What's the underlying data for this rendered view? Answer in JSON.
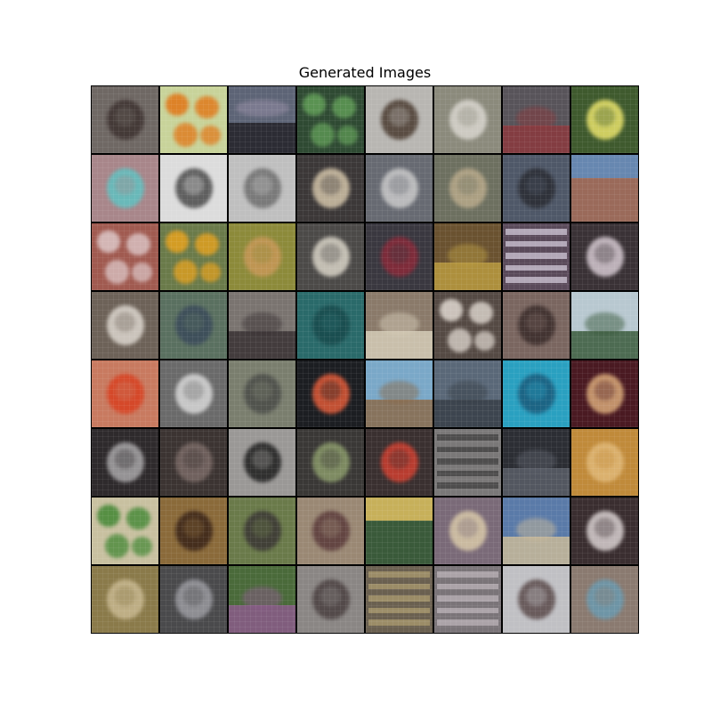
{
  "title": "Generated Images",
  "grid": {
    "rows": 8,
    "cols": 8,
    "tiles": [
      {
        "name": "tile-spider",
        "bg": "#6f6864",
        "accent": "#3d3230",
        "hint": "center"
      },
      {
        "name": "tile-oranges",
        "bg": "#c8d39a",
        "accent": "#e07a1c",
        "hint": "spots"
      },
      {
        "name": "tile-sunset-lake",
        "bg": "#5d6476",
        "accent": "#2c2c34",
        "hint": "horizon"
      },
      {
        "name": "tile-green-leaves",
        "bg": "#2f4a33",
        "accent": "#5f9a56",
        "hint": "spots"
      },
      {
        "name": "tile-food-plate",
        "bg": "#b8b6b2",
        "accent": "#4a3b30",
        "hint": "center"
      },
      {
        "name": "tile-ox-cart",
        "bg": "#8b8a7c",
        "accent": "#d9d6cf",
        "hint": "center"
      },
      {
        "name": "tile-rug",
        "bg": "#58545a",
        "accent": "#8b3a3e",
        "hint": "bottom"
      },
      {
        "name": "tile-yellow-butterfly",
        "bg": "#3f5a2e",
        "accent": "#e8e26a",
        "hint": "center"
      },
      {
        "name": "tile-child-face",
        "bg": "#a8868a",
        "accent": "#5fc2c2",
        "hint": "center"
      },
      {
        "name": "tile-gray-device",
        "bg": "#dcdcdc",
        "accent": "#4a4a4a",
        "hint": "center"
      },
      {
        "name": "tile-gray-animal",
        "bg": "#bfbfbf",
        "accent": "#6e6e6e",
        "hint": "center"
      },
      {
        "name": "tile-sandwich",
        "bg": "#3c3838",
        "accent": "#d2c3a8",
        "hint": "center"
      },
      {
        "name": "tile-bird-branch",
        "bg": "#676a72",
        "accent": "#c9c9c9",
        "hint": "center"
      },
      {
        "name": "tile-goat-head",
        "bg": "#6d7060",
        "accent": "#b8a98a",
        "hint": "center"
      },
      {
        "name": "tile-dog-sky",
        "bg": "#4f5868",
        "accent": "#2a2c33",
        "hint": "center"
      },
      {
        "name": "tile-cliff",
        "bg": "#9a6a5a",
        "accent": "#5e8cc0",
        "hint": "top"
      },
      {
        "name": "tile-flowers-red",
        "bg": "#a05a50",
        "accent": "#d9c0c0",
        "hint": "spots"
      },
      {
        "name": "tile-peppers",
        "bg": "#6a7a4a",
        "accent": "#e0a020",
        "hint": "spots"
      },
      {
        "name": "tile-poodle",
        "bg": "#8c8a3a",
        "accent": "#c89858",
        "hint": "center"
      },
      {
        "name": "tile-white-dog",
        "bg": "#4c4a48",
        "accent": "#d8d3c6",
        "hint": "center"
      },
      {
        "name": "tile-red-jacket",
        "bg": "#3a3840",
        "accent": "#8a2a3a",
        "hint": "center"
      },
      {
        "name": "tile-food-tray",
        "bg": "#6a5230",
        "accent": "#b89a40",
        "hint": "bottom"
      },
      {
        "name": "tile-bottles-shelf",
        "bg": "#5a4a5a",
        "accent": "#d8d0e0",
        "hint": "stripes"
      },
      {
        "name": "tile-fluffy-pet",
        "bg": "#3a3236",
        "accent": "#d4c8d0",
        "hint": "center"
      },
      {
        "name": "tile-ram",
        "bg": "#6d6258",
        "accent": "#dcd6ce",
        "hint": "center"
      },
      {
        "name": "tile-tree-figure",
        "bg": "#5a7060",
        "accent": "#3a4a5a",
        "hint": "center"
      },
      {
        "name": "tile-street-scene",
        "bg": "#7a7470",
        "accent": "#3a3234",
        "hint": "bottom"
      },
      {
        "name": "tile-teal-water",
        "bg": "#2a6a6a",
        "accent": "#184a4c",
        "hint": "center"
      },
      {
        "name": "tile-car",
        "bg": "#8a7a6a",
        "accent": "#d4cbb6",
        "hint": "bottom"
      },
      {
        "name": "tile-dark-collage",
        "bg": "#554a44",
        "accent": "#d8d0c8",
        "hint": "spots"
      },
      {
        "name": "tile-brown-creature",
        "bg": "#7a6660",
        "accent": "#3a2c2a",
        "hint": "center"
      },
      {
        "name": "tile-water-tower",
        "bg": "#b8c8d0",
        "accent": "#3a5a3c",
        "hint": "bottom"
      },
      {
        "name": "tile-lobster",
        "bg": "#c87a60",
        "accent": "#d84020",
        "hint": "center"
      },
      {
        "name": "tile-crystal-bowl",
        "bg": "#6a6a6a",
        "accent": "#d8d8d8",
        "hint": "center"
      },
      {
        "name": "tile-elephant",
        "bg": "#7a7e6e",
        "accent": "#4a4c48",
        "hint": "center"
      },
      {
        "name": "tile-bird-flower",
        "bg": "#1c1e22",
        "accent": "#e05a38",
        "hint": "center"
      },
      {
        "name": "tile-beach-road",
        "bg": "#7aa8c8",
        "accent": "#8a6a4a",
        "hint": "bottom"
      },
      {
        "name": "tile-mountain",
        "bg": "#5a6878",
        "accent": "#384048",
        "hint": "bottom"
      },
      {
        "name": "tile-underwater",
        "bg": "#2aa0c0",
        "accent": "#1a5a7a",
        "hint": "center"
      },
      {
        "name": "tile-chihuahua",
        "bg": "#4a1a22",
        "accent": "#d8a878",
        "hint": "center"
      },
      {
        "name": "tile-hand-object",
        "bg": "#2e2a2c",
        "accent": "#a8a6a8",
        "hint": "center"
      },
      {
        "name": "tile-dark-room",
        "bg": "#3c3432",
        "accent": "#7a6a66",
        "hint": "center"
      },
      {
        "name": "tile-black-dog",
        "bg": "#9a9896",
        "accent": "#1e1e1e",
        "hint": "center"
      },
      {
        "name": "tile-machine",
        "bg": "#3a3836",
        "accent": "#8a9a6a",
        "hint": "center"
      },
      {
        "name": "tile-red-backpack",
        "bg": "#3a3030",
        "accent": "#d04030",
        "hint": "center"
      },
      {
        "name": "tile-radio",
        "bg": "#7a7878",
        "accent": "#3c3a3a",
        "hint": "stripes"
      },
      {
        "name": "tile-dark-car",
        "bg": "#2c2e34",
        "accent": "#5a5e68",
        "hint": "bottom"
      },
      {
        "name": "tile-golden-dog",
        "bg": "#c08a3a",
        "accent": "#e0b878",
        "hint": "center"
      },
      {
        "name": "tile-glass-bottles",
        "bg": "#c8c0a0",
        "accent": "#4a8a3a",
        "hint": "spots"
      },
      {
        "name": "tile-burger",
        "bg": "#8a6a3a",
        "accent": "#3a2418",
        "hint": "center"
      },
      {
        "name": "tile-gray-elephant",
        "bg": "#6a7a4a",
        "accent": "#3a3634",
        "hint": "center"
      },
      {
        "name": "tile-ornament",
        "bg": "#9a8874",
        "accent": "#5a3a3a",
        "hint": "center"
      },
      {
        "name": "tile-storefront",
        "bg": "#3a5a3a",
        "accent": "#e0c060",
        "hint": "top"
      },
      {
        "name": "tile-volleyball",
        "bg": "#7a6a78",
        "accent": "#d8c8a8",
        "hint": "center"
      },
      {
        "name": "tile-palace",
        "bg": "#5a7aa8",
        "accent": "#c8b898",
        "hint": "bottom"
      },
      {
        "name": "tile-geisha",
        "bg": "#3a2e30",
        "accent": "#d8d0d0",
        "hint": "center"
      },
      {
        "name": "tile-child-room",
        "bg": "#8a7a4a",
        "accent": "#c8b890",
        "hint": "center"
      },
      {
        "name": "tile-pattern-gray",
        "bg": "#4a4a4c",
        "accent": "#9a9aa0",
        "hint": "center"
      },
      {
        "name": "tile-picnic-grass",
        "bg": "#4a6a3a",
        "accent": "#8a5a8a",
        "hint": "bottom"
      },
      {
        "name": "tile-statue",
        "bg": "#8a8684",
        "accent": "#4a4040",
        "hint": "center"
      },
      {
        "name": "tile-shop-display",
        "bg": "#6a6050",
        "accent": "#b0a070",
        "hint": "stripes"
      },
      {
        "name": "tile-shelves",
        "bg": "#7a7478",
        "accent": "#c0b8bc",
        "hint": "stripes"
      },
      {
        "name": "tile-mirror-bird",
        "bg": "#c0c0c4",
        "accent": "#5a4a4a",
        "hint": "center"
      },
      {
        "name": "tile-girl-standing",
        "bg": "#8a7a70",
        "accent": "#6a9ab0",
        "hint": "center"
      }
    ]
  }
}
